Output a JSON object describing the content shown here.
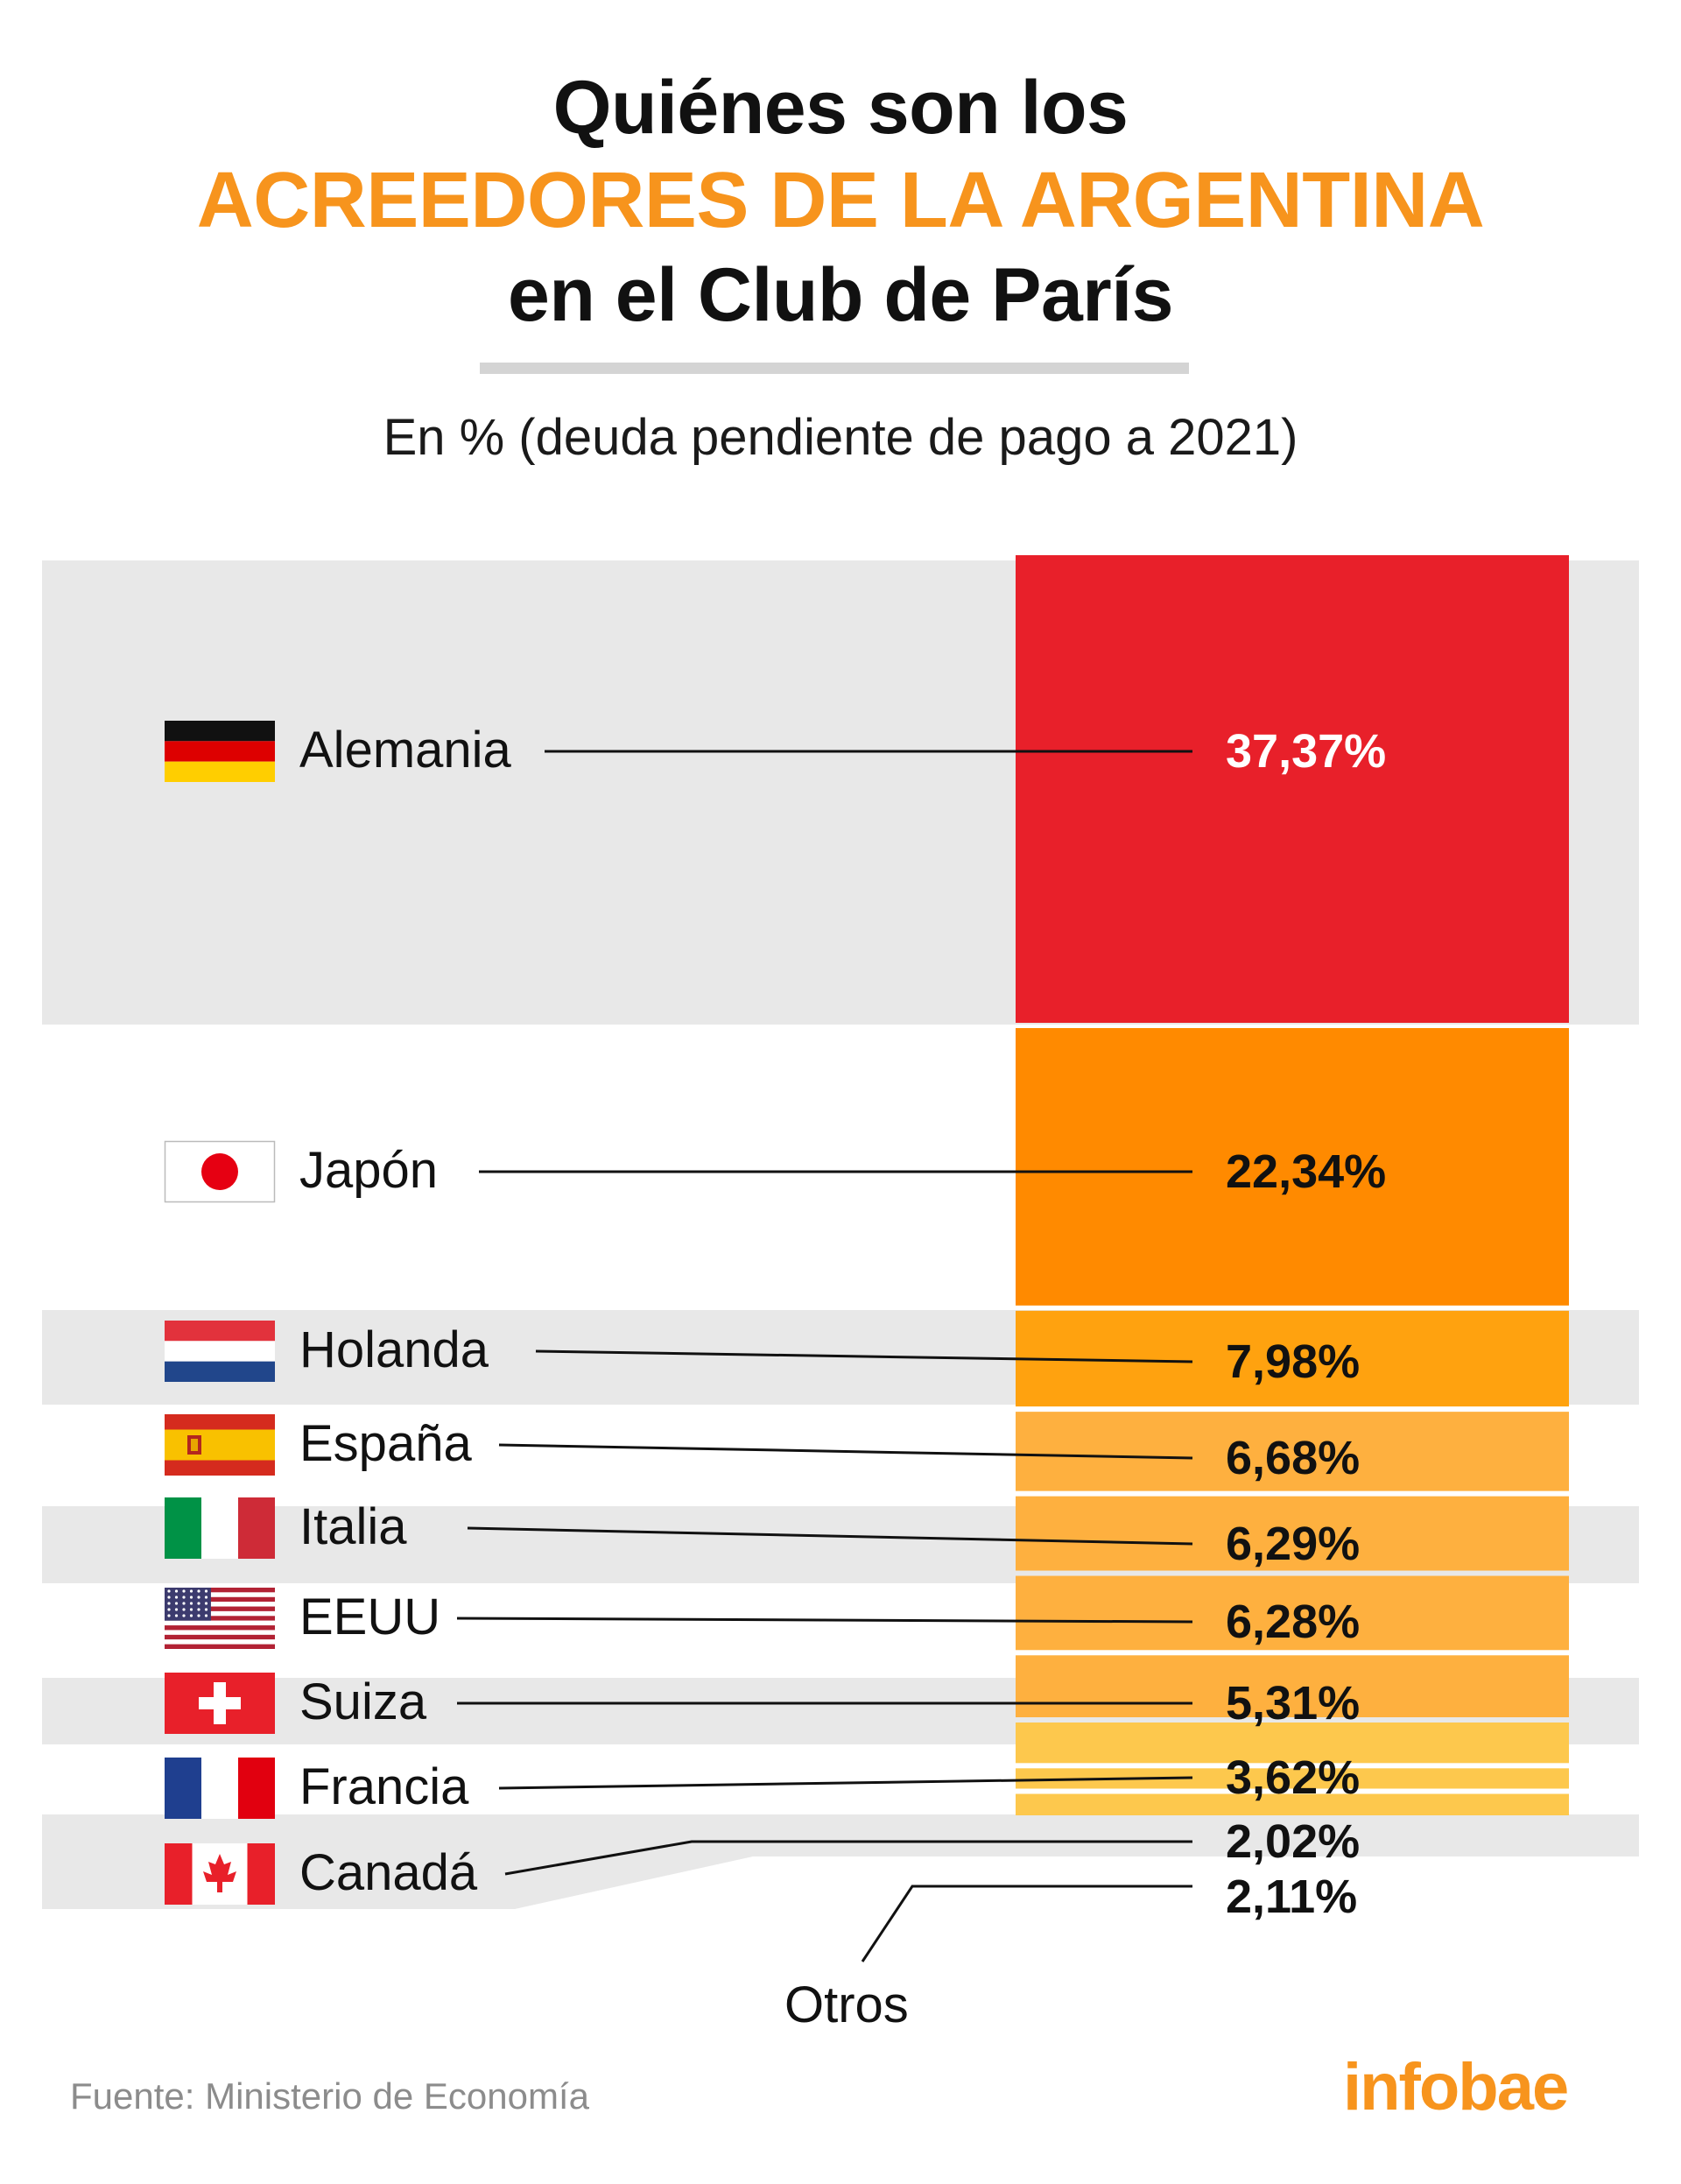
{
  "header": {
    "title_line1": "Quiénes son los",
    "title_line2": "ACREEDORES DE LA ARGENTINA",
    "title_line3": "en el Club de París",
    "subtitle": "En % (deuda pendiente de pago a 2021)"
  },
  "footer": {
    "source": "Fuente: Ministerio de Economía",
    "brand": "infobae"
  },
  "otros_label": "Otros",
  "colors": {
    "accent": "#f7941d",
    "band": "#e8e8e8",
    "bar_alemania": "#e8202a",
    "bar_japon": "#ff8a00",
    "bar_holanda": "#ffa20f",
    "bar_mid": "#feb03f",
    "bar_small": "#fdc84d"
  },
  "chart_data": {
    "type": "bar",
    "title": "Quiénes son los ACREEDORES DE LA ARGENTINA en el Club de París",
    "subtitle": "En % (deuda pendiente de pago a 2021)",
    "unit": "%",
    "stacked": true,
    "categories": [
      "Alemania",
      "Japón",
      "Holanda",
      "España",
      "Italia",
      "EEUU",
      "Suiza",
      "Francia",
      "Canadá",
      "Otros"
    ],
    "values": [
      37.37,
      22.34,
      7.98,
      6.68,
      6.29,
      6.28,
      5.31,
      3.62,
      2.02,
      2.11
    ],
    "value_labels": [
      "37,37%",
      "22,34%",
      "7,98%",
      "6,68%",
      "6,29%",
      "6,28%",
      "5,31%",
      "3,62%",
      "2,02%",
      "2,11%"
    ],
    "flags": [
      "flag-germany",
      "flag-japan",
      "flag-netherlands",
      "flag-spain",
      "flag-italy",
      "flag-usa",
      "flag-switzerland",
      "flag-france",
      "flag-canada",
      null
    ],
    "bar_colors": [
      "#e8202a",
      "#ff8a00",
      "#ffa20f",
      "#feb03f",
      "#feb03f",
      "#feb03f",
      "#feb03f",
      "#fdc84d",
      "#fdc84d",
      "#fdc84d"
    ],
    "value_text_colors": [
      "#ffffff",
      "#111111",
      "#111111",
      "#111111",
      "#111111",
      "#111111",
      "#111111",
      "#111111",
      "#111111",
      "#111111"
    ],
    "legend": "none",
    "grid": false
  }
}
